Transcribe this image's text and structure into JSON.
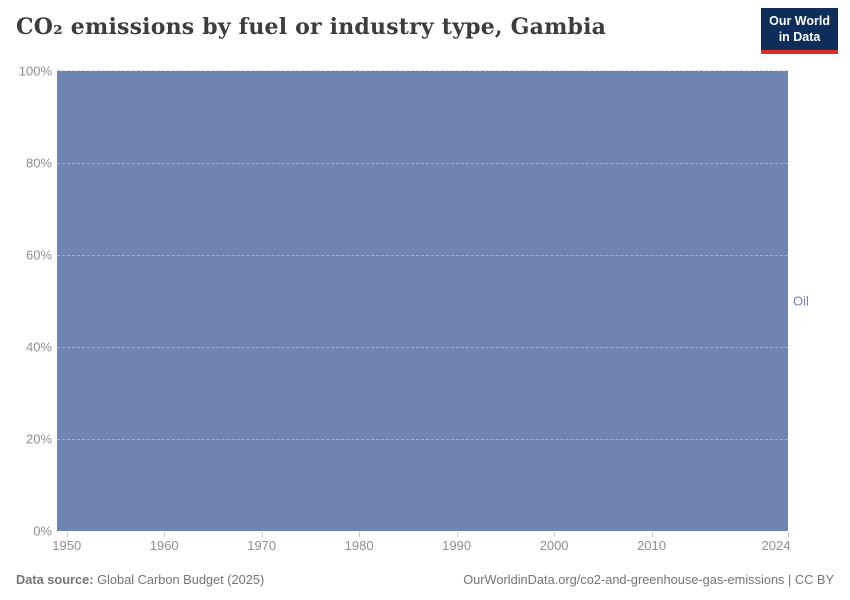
{
  "header": {
    "title": "CO₂ emissions by fuel or industry type, Gambia",
    "logo": {
      "line1": "Our World",
      "line2": "in Data"
    }
  },
  "chart_data": {
    "type": "area",
    "stacked": true,
    "relative_mode": true,
    "title": "CO₂ emissions by fuel or industry type, Gambia",
    "xlabel": "",
    "ylabel": "",
    "x_domain": [
      1949,
      2024
    ],
    "x_ticks": [
      1950,
      1960,
      1970,
      1980,
      1990,
      2000,
      2010,
      2024
    ],
    "ylim": [
      0,
      100
    ],
    "y_ticks": [
      0,
      20,
      40,
      60,
      80,
      100
    ],
    "y_tick_suffix": "%",
    "grid": true,
    "legend_position": "right-of-plot",
    "series": [
      {
        "name": "Oil",
        "color": "#6e84b2",
        "x": [
          1949,
          2024
        ],
        "values": [
          100,
          100
        ]
      }
    ]
  },
  "footer": {
    "source_label": "Data source:",
    "source_value": "Global Carbon Budget (2025)",
    "license_text": "OurWorldinData.org/co2-and-greenhouse-gas-emissions | CC BY"
  },
  "colors": {
    "area_fill": "#6e84b2",
    "series_label": "#6d84b5",
    "tick_label": "#8f8f8f",
    "title_text": "#3d3d3d",
    "footer_text": "#757575",
    "logo_background": "#0d2e5a",
    "logo_accent": "#dc2e27",
    "gridline_on_white": "#d9d9d9"
  }
}
